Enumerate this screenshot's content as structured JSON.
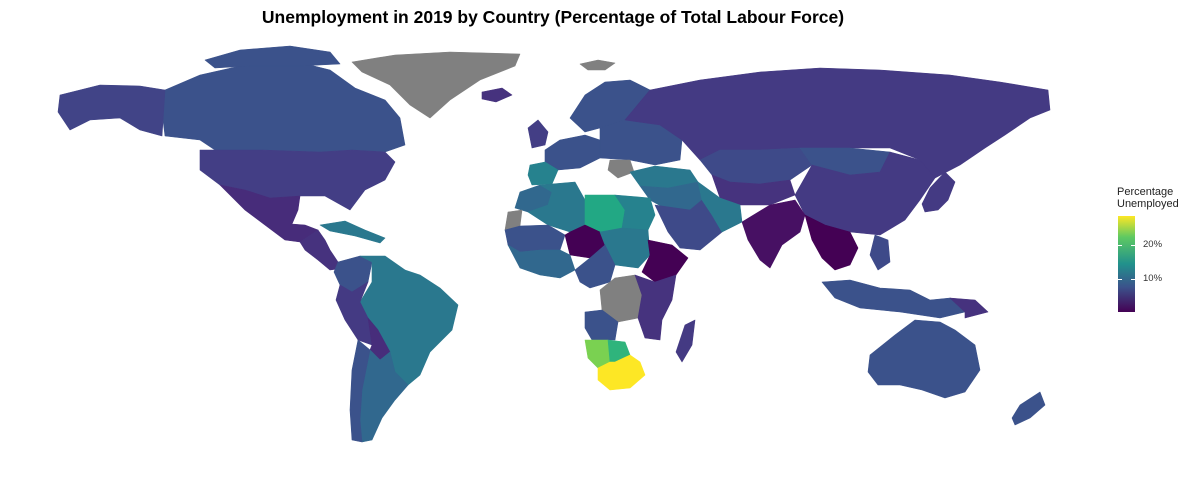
{
  "title": "Unemployment in 2019 by Country (Percentage of Total Labour Force)",
  "colors": {
    "background": "#ffffff",
    "no_data": "#808080",
    "scale": [
      "#440154",
      "#3B528B",
      "#21918C",
      "#5EC962",
      "#FDE725"
    ]
  },
  "legend": {
    "title_line1": "Percentage",
    "title_line2": "Unemployed",
    "tick_high": "20%",
    "tick_low": "10%",
    "range_pct": [
      0,
      29
    ]
  },
  "regions": [
    {
      "name": "Canada",
      "color": "#3B528B"
    },
    {
      "name": "Alaska",
      "color": "#414487"
    },
    {
      "name": "United States",
      "color": "#433E85"
    },
    {
      "name": "Mexico",
      "color": "#472C7A"
    },
    {
      "name": "Central America",
      "color": "#46327E"
    },
    {
      "name": "Caribbean",
      "color": "#2A788E"
    },
    {
      "name": "Greenland",
      "color": "#808080"
    },
    {
      "name": "Svalbard",
      "color": "#808080"
    },
    {
      "name": "Colombia",
      "color": "#3B528B"
    },
    {
      "name": "Venezuela",
      "color": "#2A788E"
    },
    {
      "name": "Brazil",
      "color": "#2A788E"
    },
    {
      "name": "Peru",
      "color": "#443A83"
    },
    {
      "name": "Bolivia",
      "color": "#472D7B"
    },
    {
      "name": "Argentina",
      "color": "#31688E"
    },
    {
      "name": "Chile",
      "color": "#3B528B"
    },
    {
      "name": "Iceland",
      "color": "#46327E"
    },
    {
      "name": "United Kingdom",
      "color": "#433E85"
    },
    {
      "name": "Scandinavia",
      "color": "#3B528B"
    },
    {
      "name": "Western Europe",
      "color": "#3B528B"
    },
    {
      "name": "Spain",
      "color": "#26828E"
    },
    {
      "name": "Eastern Europe",
      "color": "#3B528B"
    },
    {
      "name": "Balkans",
      "color": "#808080"
    },
    {
      "name": "Turkey",
      "color": "#2A788E"
    },
    {
      "name": "Russia",
      "color": "#443A83"
    },
    {
      "name": "Kazakhstan",
      "color": "#3E4A89"
    },
    {
      "name": "Central Asia",
      "color": "#46337E"
    },
    {
      "name": "Mongolia",
      "color": "#3B528B"
    },
    {
      "name": "China",
      "color": "#443A83"
    },
    {
      "name": "Japan",
      "color": "#443A83"
    },
    {
      "name": "Middle East",
      "color": "#31688E"
    },
    {
      "name": "Saudi Arabia",
      "color": "#3E4A89"
    },
    {
      "name": "Iran",
      "color": "#2A788E"
    },
    {
      "name": "India",
      "color": "#471063"
    },
    {
      "name": "Southeast Asia",
      "color": "#440154"
    },
    {
      "name": "Philippines",
      "color": "#3E4A89"
    },
    {
      "name": "Indonesia",
      "color": "#3B528B"
    },
    {
      "name": "Morocco",
      "color": "#31688E"
    },
    {
      "name": "Western Sahara",
      "color": "#808080"
    },
    {
      "name": "Algeria",
      "color": "#2A788E"
    },
    {
      "name": "Libya",
      "color": "#22A884"
    },
    {
      "name": "Egypt",
      "color": "#26828E"
    },
    {
      "name": "Sahel",
      "color": "#3B528B"
    },
    {
      "name": "Niger",
      "color": "#440154"
    },
    {
      "name": "West Africa",
      "color": "#31688E"
    },
    {
      "name": "Sudan",
      "color": "#2A788E"
    },
    {
      "name": "Ethiopia",
      "color": "#440154"
    },
    {
      "name": "Central Africa",
      "color": "#3B528B"
    },
    {
      "name": "DR Congo",
      "color": "#808080"
    },
    {
      "name": "East Africa",
      "color": "#46337E"
    },
    {
      "name": "Angola",
      "color": "#3B528B"
    },
    {
      "name": "Namibia",
      "color": "#7AD151"
    },
    {
      "name": "Botswana",
      "color": "#2FB47C"
    },
    {
      "name": "South Africa",
      "color": "#FDE725"
    },
    {
      "name": "Madagascar",
      "color": "#443A83"
    },
    {
      "name": "Australia",
      "color": "#3B528B"
    },
    {
      "name": "New Zealand",
      "color": "#3B528B"
    },
    {
      "name": "Papua New Guinea",
      "color": "#46327E"
    }
  ]
}
